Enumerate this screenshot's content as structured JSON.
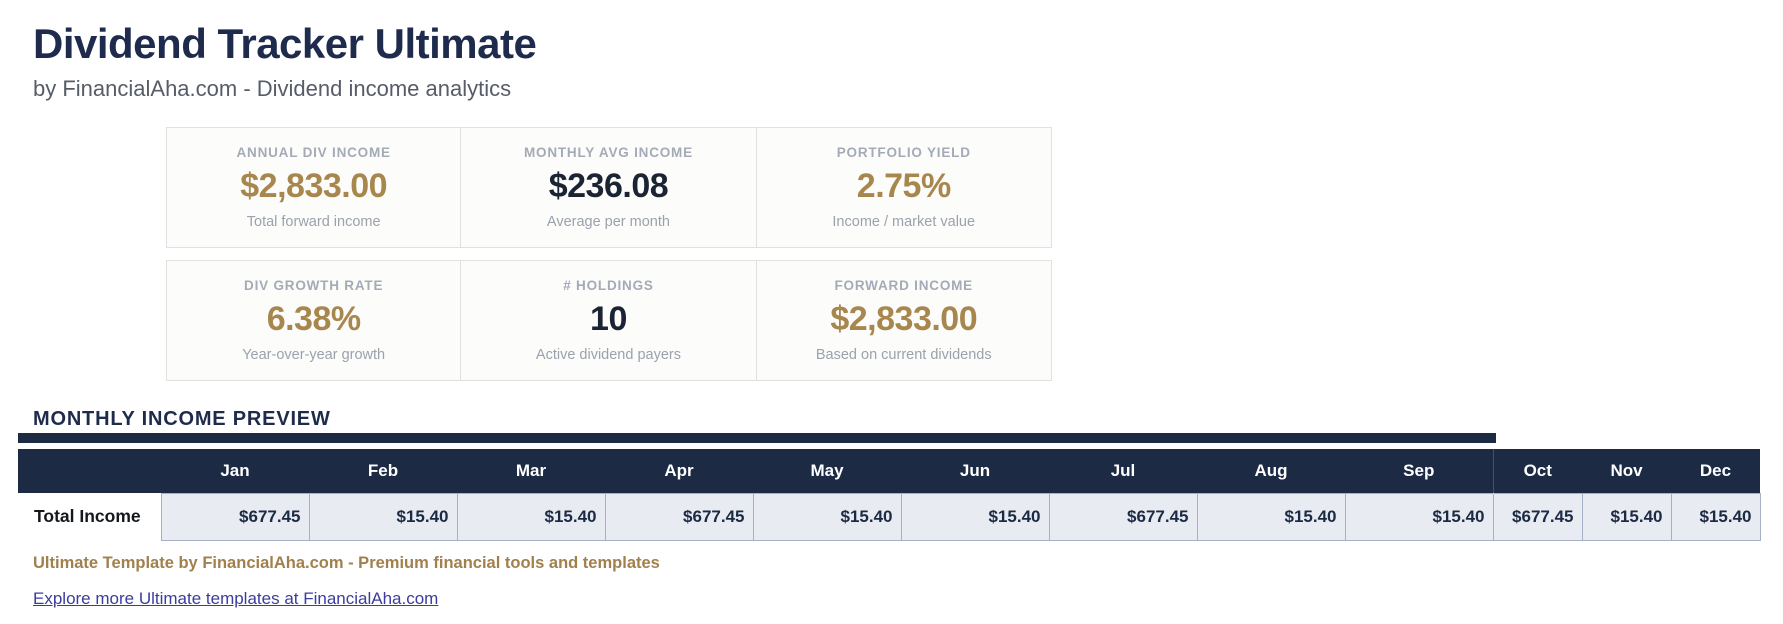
{
  "header": {
    "title": "Dividend Tracker Ultimate",
    "subtitle": "by FinancialAha.com - Dividend income analytics"
  },
  "stat_cards": [
    {
      "label": "ANNUAL DIV INCOME",
      "value": "$2,833.00",
      "sublabel": "Total forward income",
      "value_style": "gold"
    },
    {
      "label": "MONTHLY AVG INCOME",
      "value": "$236.08",
      "sublabel": "Average per month",
      "value_style": "dark"
    },
    {
      "label": "PORTFOLIO YIELD",
      "value": "2.75%",
      "sublabel": "Income / market value",
      "value_style": "gold"
    },
    {
      "label": "DIV GROWTH RATE",
      "value": "6.38%",
      "sublabel": "Year-over-year growth",
      "value_style": "gold"
    },
    {
      "label": "# HOLDINGS",
      "value": "10",
      "sublabel": "Active dividend payers",
      "value_style": "dark"
    },
    {
      "label": "FORWARD INCOME",
      "value": "$2,833.00",
      "sublabel": "Based on current dividends",
      "value_style": "gold"
    }
  ],
  "table": {
    "section_title": "MONTHLY INCOME PREVIEW",
    "row_label": "Total Income",
    "months": [
      "Jan",
      "Feb",
      "Mar",
      "Apr",
      "May",
      "Jun",
      "Jul",
      "Aug",
      "Sep",
      "Oct",
      "Nov",
      "Dec"
    ],
    "values": [
      "$677.45",
      "$15.40",
      "$15.40",
      "$677.45",
      "$15.40",
      "$15.40",
      "$677.45",
      "$15.40",
      "$15.40",
      "$677.45",
      "$15.40",
      "$15.40"
    ]
  },
  "footer": {
    "tagline": "Ultimate Template by FinancialAha.com - Premium financial tools and templates",
    "link_text": "Explore more Ultimate templates at FinancialAha.com"
  },
  "colors": {
    "navy": "#1f2b4d",
    "header-navy": "#1c2a44",
    "gold": "#a8874e",
    "cell-bg": "#e9ebf2",
    "cell-border": "#a6aec8",
    "link-blue": "#3c3c9e"
  }
}
